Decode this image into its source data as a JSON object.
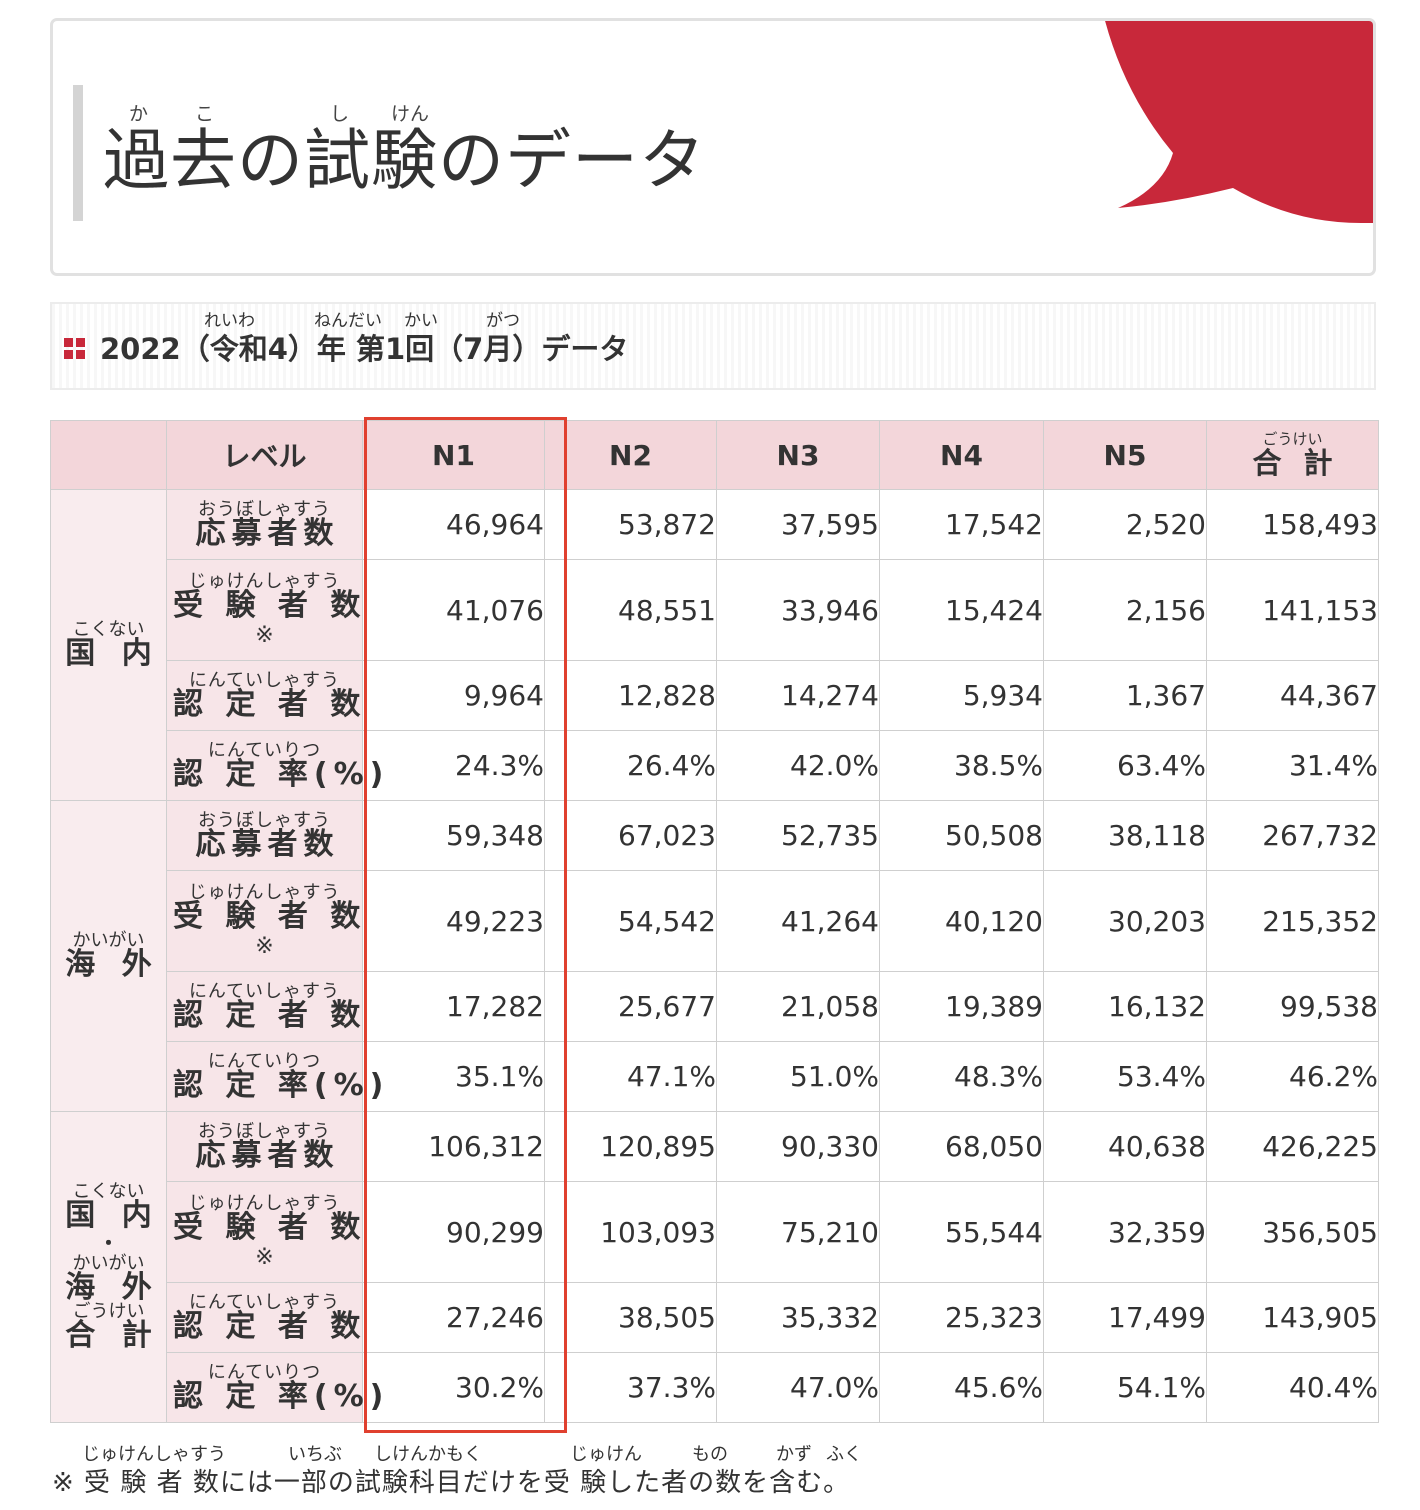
{
  "banner": {
    "title": "過去の試験のデータ",
    "ruby": [
      "か",
      "こ",
      "し",
      "けん"
    ]
  },
  "section": {
    "title": "2022（令和4）年 第1回（7月）データ",
    "ruby": [
      "れいわ",
      "ねんだい",
      "かい",
      "がつ"
    ]
  },
  "table": {
    "header": {
      "level_label": "レベル",
      "levels": [
        "N1",
        "N2",
        "N3",
        "N4",
        "N5"
      ],
      "total_ruby": "ごうけい",
      "total_label": "合 計"
    },
    "note_mark": "※",
    "metric_labels": [
      {
        "ruby": "おうぼしゃすう",
        "text": "応募者数"
      },
      {
        "ruby": "じゅけんしゃすう",
        "text": "受 験 者 数"
      },
      {
        "ruby": "にんていしゃすう",
        "text": "認 定 者 数"
      },
      {
        "ruby": "にんていりつ",
        "text": "認 定 率(%)"
      }
    ],
    "regions": [
      {
        "ruby": "こくない",
        "label": "国 内",
        "rows": [
          [
            "46,964",
            "53,872",
            "37,595",
            "17,542",
            "2,520",
            "158,493"
          ],
          [
            "41,076",
            "48,551",
            "33,946",
            "15,424",
            "2,156",
            "141,153"
          ],
          [
            "9,964",
            "12,828",
            "14,274",
            "5,934",
            "1,367",
            "44,367"
          ],
          [
            "24.3%",
            "26.4%",
            "42.0%",
            "38.5%",
            "63.4%",
            "31.4%"
          ]
        ]
      },
      {
        "ruby": "かいがい",
        "label": "海 外",
        "rows": [
          [
            "59,348",
            "67,023",
            "52,735",
            "50,508",
            "38,118",
            "267,732"
          ],
          [
            "49,223",
            "54,542",
            "41,264",
            "40,120",
            "30,203",
            "215,352"
          ],
          [
            "17,282",
            "25,677",
            "21,058",
            "19,389",
            "16,132",
            "99,538"
          ],
          [
            "35.1%",
            "47.1%",
            "51.0%",
            "48.3%",
            "53.4%",
            "46.2%"
          ]
        ]
      },
      {
        "ruby": "こくない",
        "label": "国 内",
        "dot": "・",
        "ruby2": "かいがい",
        "label2": "海 外",
        "ruby3": "ごうけい",
        "label3": "合 計",
        "rows": [
          [
            "106,312",
            "120,895",
            "90,330",
            "68,050",
            "40,638",
            "426,225"
          ],
          [
            "90,299",
            "103,093",
            "75,210",
            "55,544",
            "32,359",
            "356,505"
          ],
          [
            "27,246",
            "38,505",
            "35,332",
            "25,323",
            "17,499",
            "143,905"
          ],
          [
            "30.2%",
            "37.3%",
            "47.0%",
            "45.6%",
            "54.1%",
            "40.4%"
          ]
        ]
      }
    ]
  },
  "footnote": {
    "text": "※ 受 験 者 数には一部の試験科目だけを受 験した者の数を含む。",
    "ruby": [
      "じゅけんしゃすう",
      "いちぶ",
      "しけんかもく",
      "じゅけん",
      "もの",
      "かず",
      "ふく"
    ]
  },
  "colors": {
    "accent": "#c8283a",
    "header_bg": "#f3d6da",
    "label_bg": "#f7e5e8",
    "highlight": "#e0402f"
  }
}
